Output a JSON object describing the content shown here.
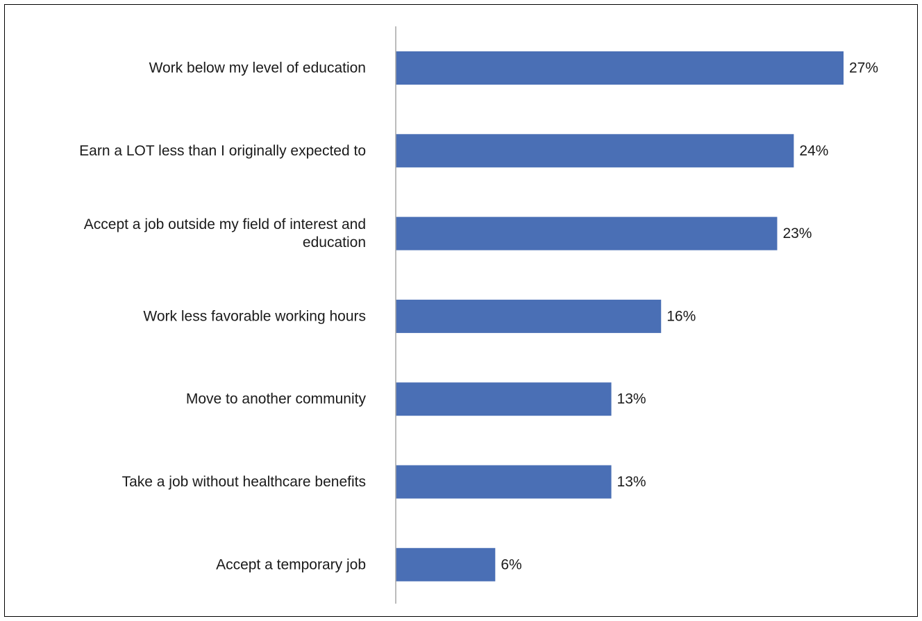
{
  "chart_data": {
    "type": "bar",
    "orientation": "horizontal",
    "title": "",
    "xlabel": "",
    "ylabel": "",
    "categories": [
      [
        "Work below my level of education"
      ],
      [
        "Earn a LOT less than I originally expected to"
      ],
      [
        "Accept a job outside my field of interest and",
        "education"
      ],
      [
        "Work less favorable working hours"
      ],
      [
        "Move to another community"
      ],
      [
        "Take a job without healthcare benefits"
      ],
      [
        "Accept a temporary job"
      ]
    ],
    "values": [
      27,
      24,
      23,
      16,
      13,
      13,
      6
    ],
    "data_labels": [
      "27%",
      "24%",
      "23%",
      "16%",
      "13%",
      "13%",
      "6%"
    ],
    "xlim": [
      0,
      30
    ],
    "grid": false,
    "legend": "none",
    "bar_color": "#4a6fb5",
    "axis_color": "#a6a6a6"
  }
}
